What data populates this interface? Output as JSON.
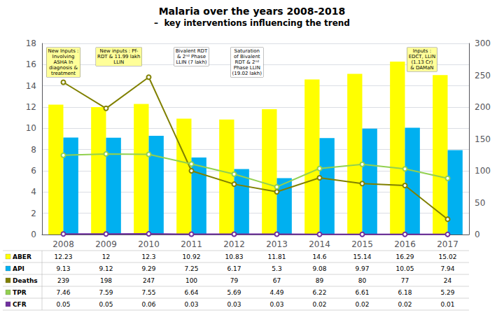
{
  "chart_data": {
    "type": "bar",
    "title": "Malaria over the years 2008-2018",
    "subtitle": "–  key interventions influencing the trend",
    "categories": [
      "2008",
      "2009",
      "2010",
      "2011",
      "2012",
      "2013",
      "2014",
      "2015",
      "2016",
      "2017"
    ],
    "series": [
      {
        "name": "ABER",
        "type": "bar",
        "color": "#FFFF00",
        "values": [
          12.23,
          12,
          12.3,
          10.92,
          10.83,
          11.81,
          14.6,
          15.14,
          16.29,
          15.02
        ]
      },
      {
        "name": "API",
        "type": "bar",
        "color": "#00B0F0",
        "values": [
          9.13,
          9.12,
          9.29,
          7.25,
          6.17,
          5.3,
          9.08,
          9.97,
          10.05,
          7.94
        ]
      },
      {
        "name": "Deaths",
        "type": "line",
        "axis": "y2",
        "marker": "circle",
        "color": "#808000",
        "values": [
          239,
          198,
          247,
          100,
          79,
          67,
          89,
          80,
          77,
          24
        ]
      },
      {
        "name": "TPR",
        "type": "line",
        "marker": "circle",
        "color": "#92D050",
        "values": [
          7.46,
          7.59,
          7.55,
          6.64,
          5.69,
          4.49,
          6.22,
          6.61,
          6.18,
          5.29
        ]
      },
      {
        "name": "CFR",
        "type": "line",
        "marker": "circle",
        "color": "#7030A0",
        "values": [
          0.05,
          0.05,
          0.06,
          0.03,
          0.03,
          0.03,
          0.02,
          0.02,
          0.02,
          0.01
        ]
      }
    ],
    "ylim": [
      0,
      18
    ],
    "yticks": [
      0,
      2,
      4,
      6,
      8,
      10,
      12,
      14,
      16,
      18
    ],
    "y2lim": [
      0,
      300
    ],
    "y2ticks": [
      0,
      50,
      100,
      150,
      200,
      250,
      300
    ],
    "grid": true,
    "data_labels": true,
    "annotations": [
      {
        "category": "2008",
        "text": "New Inputs :\nInvolving\nASHA In\ndiagnosis &\ntreatment",
        "color": "#FFFF99"
      },
      {
        "category": "2009",
        "text": "New inputs : Pf-\nRDT & 11.99 lakh\nLLIN",
        "color": "#FFFF99"
      },
      {
        "category": "2011",
        "text": "Bivalent RDT\n& 2ⁿᵈ Phase\nLLIN (7 lakh)",
        "color": "#FFFFFF"
      },
      {
        "category": "2012",
        "text": "Saturation\nof Bivalent\nRDT & 2ⁿᵈ\nPhase LLIN\n(19.02 lakh)",
        "color": "#FFFFFF"
      },
      {
        "category": "2016",
        "text": "Inputs :\nEDCT, LLIN\n(1.13 Cr)\n& DAMaN",
        "color": "#FFFF99"
      }
    ]
  }
}
